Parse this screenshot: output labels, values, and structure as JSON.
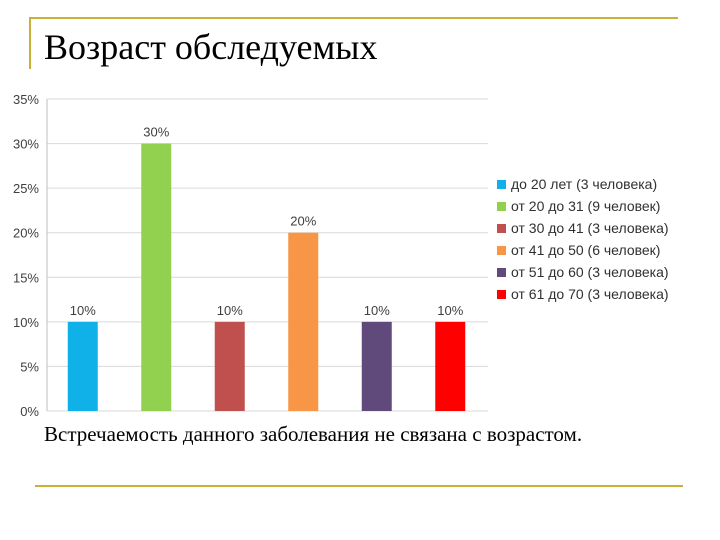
{
  "slide": {
    "title": "Возраст обследуемых",
    "caption": "Встречаемость данного заболевания не связана с возрастом.",
    "accent_color": "#c9b037"
  },
  "chart_data": {
    "type": "bar",
    "categories": [
      "до 20 лет (3 человека)",
      "от 20 до 31 (9 человек)",
      "от 30 до 41 (3 человека)",
      "от 41 до 50 (6 человек)",
      "от 51 до 60 (3 человека)",
      "от 61 до 70 (3 человека)"
    ],
    "values": [
      10,
      30,
      10,
      20,
      10,
      10
    ],
    "data_labels": [
      "10%",
      "30%",
      "10%",
      "20%",
      "10%",
      "10%"
    ],
    "colors": [
      "#0fb1e8",
      "#92d050",
      "#c0504d",
      "#f79646",
      "#604a7b",
      "#ff0000"
    ],
    "ylim": [
      0,
      35
    ],
    "yticks": [
      0,
      5,
      10,
      15,
      20,
      25,
      30,
      35
    ],
    "ytick_labels": [
      "0%",
      "5%",
      "10%",
      "15%",
      "20%",
      "25%",
      "30%",
      "35%"
    ],
    "grid": true,
    "legend_position": "right",
    "xlabel": "",
    "ylabel": ""
  }
}
